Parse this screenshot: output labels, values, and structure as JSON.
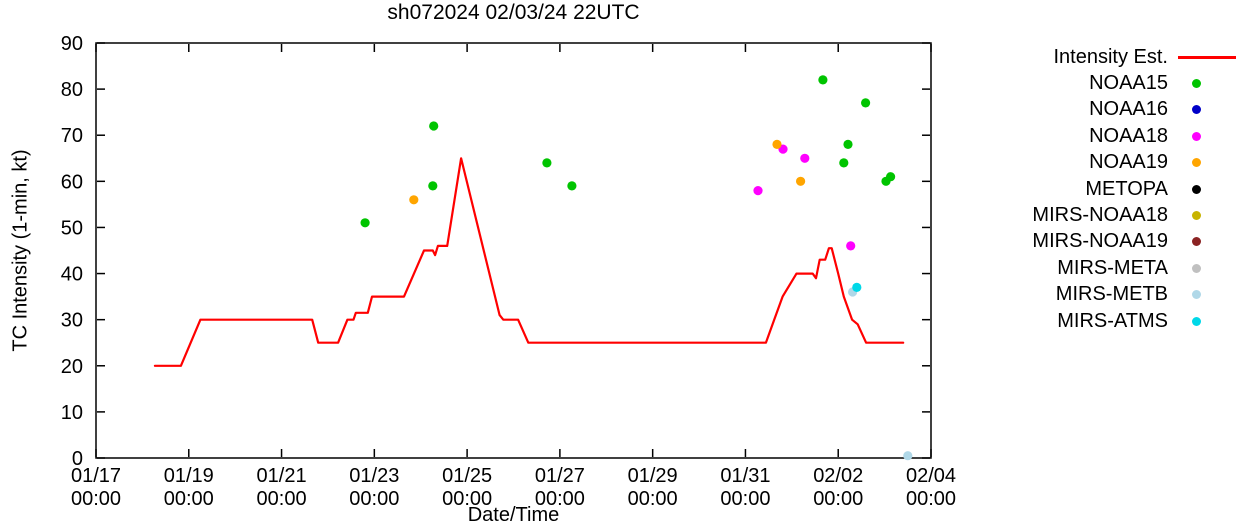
{
  "chart_data": {
    "type": "line",
    "title": "sh072024 02/03/24 22UTC",
    "xlabel": "Date/Time",
    "ylabel": "TC Intensity (1-min, kt)",
    "grid": false,
    "legend_position": "outside-right-top",
    "ylim": [
      0,
      90
    ],
    "ytick_step": 10,
    "x_unit": "days since 01/17 00:00",
    "xlim": [
      0,
      18
    ],
    "x_ticks": [
      {
        "day": 0,
        "date": "01/17",
        "time": "00:00"
      },
      {
        "day": 2,
        "date": "01/19",
        "time": "00:00"
      },
      {
        "day": 4,
        "date": "01/21",
        "time": "00:00"
      },
      {
        "day": 6,
        "date": "01/23",
        "time": "00:00"
      },
      {
        "day": 8,
        "date": "01/25",
        "time": "00:00"
      },
      {
        "day": 10,
        "date": "01/27",
        "time": "00:00"
      },
      {
        "day": 12,
        "date": "01/29",
        "time": "00:00"
      },
      {
        "day": 14,
        "date": "01/31",
        "time": "00:00"
      },
      {
        "day": 16,
        "date": "02/02",
        "time": "00:00"
      },
      {
        "day": 18,
        "date": "02/04",
        "time": "00:00"
      }
    ],
    "intensity_line": {
      "label": "Intensity Est.",
      "color": "#ff0000",
      "points": [
        [
          1.27,
          20
        ],
        [
          1.83,
          20
        ],
        [
          2.25,
          30
        ],
        [
          4.66,
          30
        ],
        [
          4.79,
          25
        ],
        [
          5.22,
          25
        ],
        [
          5.42,
          30
        ],
        [
          5.55,
          30
        ],
        [
          5.6,
          31.5
        ],
        [
          5.86,
          31.5
        ],
        [
          5.95,
          35
        ],
        [
          6.64,
          35
        ],
        [
          7.07,
          45
        ],
        [
          7.26,
          45
        ],
        [
          7.31,
          44
        ],
        [
          7.37,
          46
        ],
        [
          7.57,
          46
        ],
        [
          7.87,
          65
        ],
        [
          8.7,
          31
        ],
        [
          8.78,
          30
        ],
        [
          9.1,
          30
        ],
        [
          9.32,
          25
        ],
        [
          14.44,
          25
        ],
        [
          14.62,
          30
        ],
        [
          14.8,
          35
        ],
        [
          15.1,
          40
        ],
        [
          15.45,
          40
        ],
        [
          15.52,
          39
        ],
        [
          15.6,
          43
        ],
        [
          15.72,
          43
        ],
        [
          15.8,
          45.5
        ],
        [
          15.86,
          45.5
        ],
        [
          16.0,
          40
        ],
        [
          16.12,
          35
        ],
        [
          16.3,
          30
        ],
        [
          16.42,
          29
        ],
        [
          16.6,
          25
        ],
        [
          17.4,
          25
        ]
      ]
    },
    "satellite_series": [
      {
        "label": "NOAA15",
        "color": "#00c400",
        "points": [
          [
            5.8,
            51
          ],
          [
            7.26,
            59
          ],
          [
            7.28,
            72
          ],
          [
            9.72,
            64
          ],
          [
            10.26,
            59
          ],
          [
            15.67,
            82
          ],
          [
            16.12,
            64
          ],
          [
            16.21,
            68
          ],
          [
            16.59,
            77
          ],
          [
            17.03,
            60
          ],
          [
            17.13,
            61
          ]
        ]
      },
      {
        "label": "NOAA16",
        "color": "#0000c8",
        "points": []
      },
      {
        "label": "NOAA18",
        "color": "#ff00ff",
        "points": [
          [
            14.27,
            58
          ],
          [
            14.81,
            67
          ],
          [
            15.28,
            65
          ],
          [
            16.27,
            46
          ]
        ]
      },
      {
        "label": "NOAA19",
        "color": "#ffa500",
        "points": [
          [
            6.85,
            56
          ],
          [
            14.68,
            68
          ],
          [
            15.19,
            60
          ]
        ]
      },
      {
        "label": "METOPA",
        "color": "#000000",
        "points": []
      },
      {
        "label": "MIRS-NOAA18",
        "color": "#c8b400",
        "points": []
      },
      {
        "label": "MIRS-NOAA19",
        "color": "#8b2323",
        "points": []
      },
      {
        "label": "MIRS-META",
        "color": "#c0c0c0",
        "points": []
      },
      {
        "label": "MIRS-METB",
        "color": "#b0d8e8",
        "points": [
          [
            16.31,
            36
          ],
          [
            17.5,
            0.5
          ]
        ]
      },
      {
        "label": "MIRS-ATMS",
        "color": "#00d8e8",
        "points": [
          [
            16.4,
            37
          ]
        ]
      }
    ]
  }
}
